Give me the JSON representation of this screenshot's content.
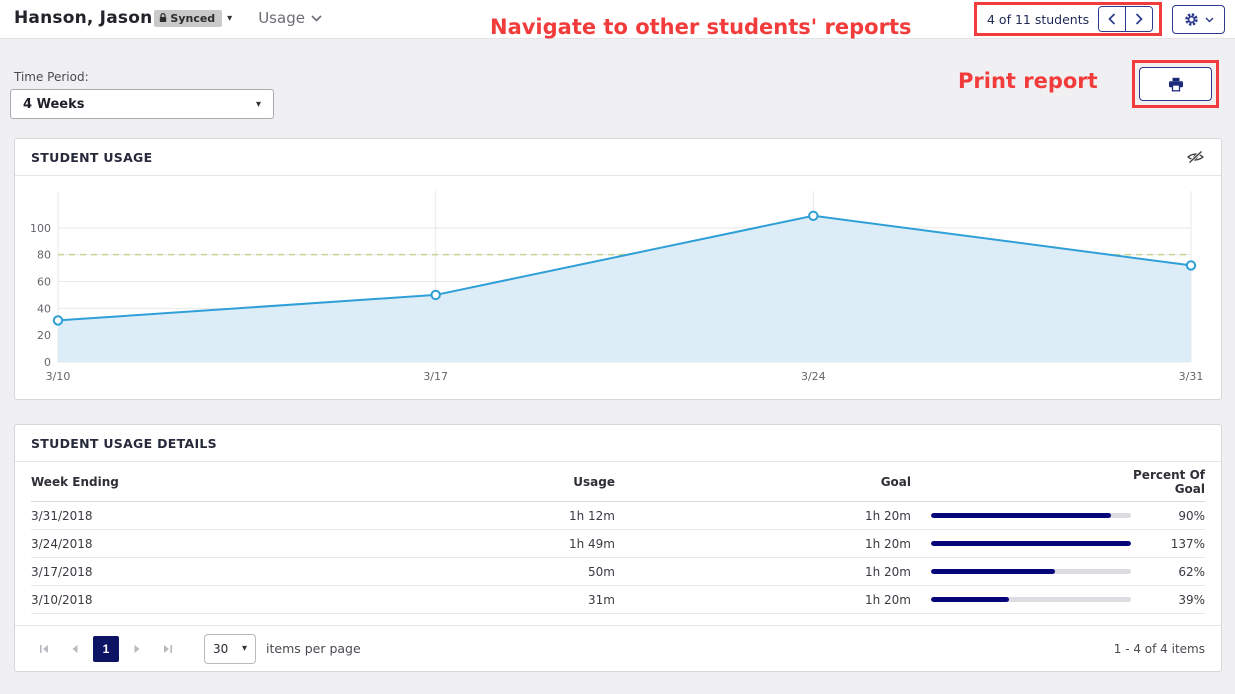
{
  "header": {
    "student_name": "Hanson, Jason",
    "synced_label": "Synced",
    "nav_label": "Usage",
    "students_counter": "4 of 11 students"
  },
  "annotations": {
    "navigate_text": "Navigate to other students' reports",
    "print_text": "Print report",
    "highlight_color": "#f23c3c"
  },
  "filters": {
    "time_period_label": "Time Period:",
    "time_period_value": "4 Weeks"
  },
  "usage_panel": {
    "title": "STUDENT USAGE"
  },
  "chart_data": {
    "type": "area",
    "title": "Student Usage",
    "categories": [
      "3/10",
      "3/17",
      "3/24",
      "3/31"
    ],
    "series": [
      {
        "name": "Usage (minutes)",
        "values": [
          31,
          50,
          109,
          72
        ]
      }
    ],
    "goal_line": 80,
    "yticks": [
      0,
      20,
      40,
      60,
      80,
      100
    ],
    "ylim": [
      0,
      123
    ],
    "grid": true,
    "legend": false,
    "colors": {
      "line": "#2f9fd8",
      "area_fill": "#ddedf7",
      "goal_line": "#c2d593",
      "gridline": "#e8e8ea",
      "tick_text": "#65656c"
    }
  },
  "details": {
    "title": "STUDENT USAGE DETAILS",
    "columns": {
      "week": "Week Ending",
      "usage": "Usage",
      "goal": "Goal",
      "percent": "Percent Of Goal"
    },
    "rows": [
      {
        "week": "3/31/2018",
        "usage": "1h 12m",
        "goal": "1h 20m",
        "percent": "90%",
        "percent_value": 90
      },
      {
        "week": "3/24/2018",
        "usage": "1h 49m",
        "goal": "1h 20m",
        "percent": "137%",
        "percent_value": 137
      },
      {
        "week": "3/17/2018",
        "usage": "50m",
        "goal": "1h 20m",
        "percent": "62%",
        "percent_value": 62
      },
      {
        "week": "3/10/2018",
        "usage": "31m",
        "goal": "1h 20m",
        "percent": "39%",
        "percent_value": 39
      }
    ],
    "pager": {
      "page": "1",
      "page_size": "30",
      "items_per_page_label": "items per page",
      "items_summary": "1 - 4 of 4 items"
    }
  }
}
